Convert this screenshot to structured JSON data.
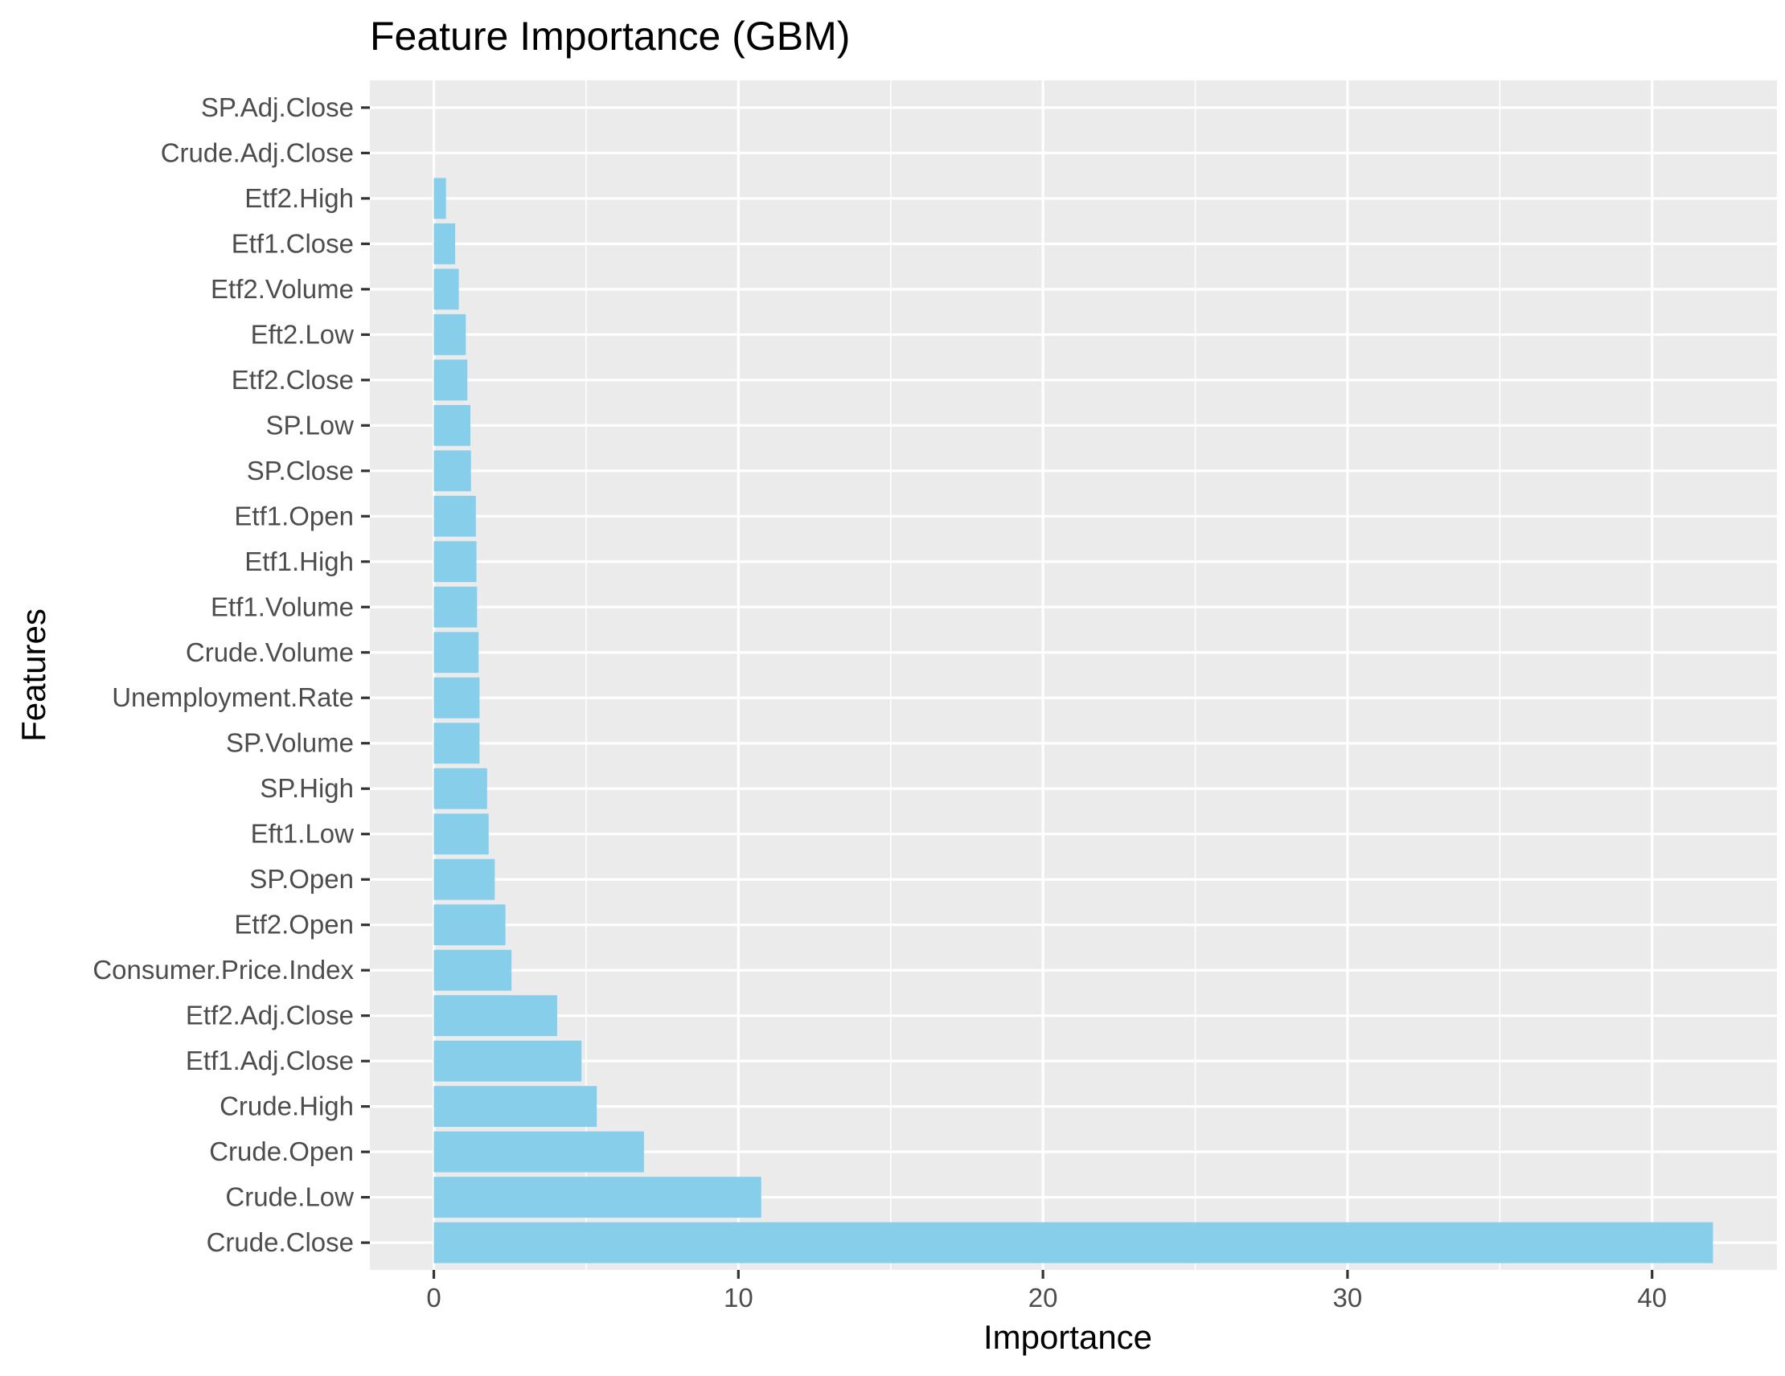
{
  "chart_data": {
    "type": "bar",
    "orientation": "horizontal",
    "title": "Feature Importance (GBM)",
    "xlabel": "Importance",
    "ylabel": "Features",
    "categories": [
      "Crude.Close",
      "Crude.Low",
      "Crude.Open",
      "Crude.High",
      "Etf1.Adj.Close",
      "Etf2.Adj.Close",
      "Consumer.Price.Index",
      "Etf2.Open",
      "SP.Open",
      "Eft1.Low",
      "SP.High",
      "SP.Volume",
      "Unemployment.Rate",
      "Crude.Volume",
      "Etf1.Volume",
      "Etf1.High",
      "Etf1.Open",
      "SP.Close",
      "SP.Low",
      "Etf2.Close",
      "Eft2.Low",
      "Etf2.Volume",
      "Etf1.Close",
      "Etf2.High",
      "Crude.Adj.Close",
      "SP.Adj.Close"
    ],
    "values": [
      42.0,
      10.75,
      6.9,
      5.35,
      4.85,
      4.05,
      2.55,
      2.35,
      2.0,
      1.8,
      1.75,
      1.5,
      1.5,
      1.47,
      1.42,
      1.4,
      1.38,
      1.22,
      1.2,
      1.1,
      1.05,
      0.82,
      0.7,
      0.4,
      0.0,
      0.0
    ],
    "xlim": [
      -2.1,
      44.1
    ],
    "xticks": [
      0,
      10,
      20,
      30,
      40
    ],
    "xtick_labels": [
      "0",
      "10",
      "20",
      "30",
      "40"
    ],
    "grid": true,
    "bar_color": "#87ceeb",
    "panel_color": "#ebebeb"
  }
}
